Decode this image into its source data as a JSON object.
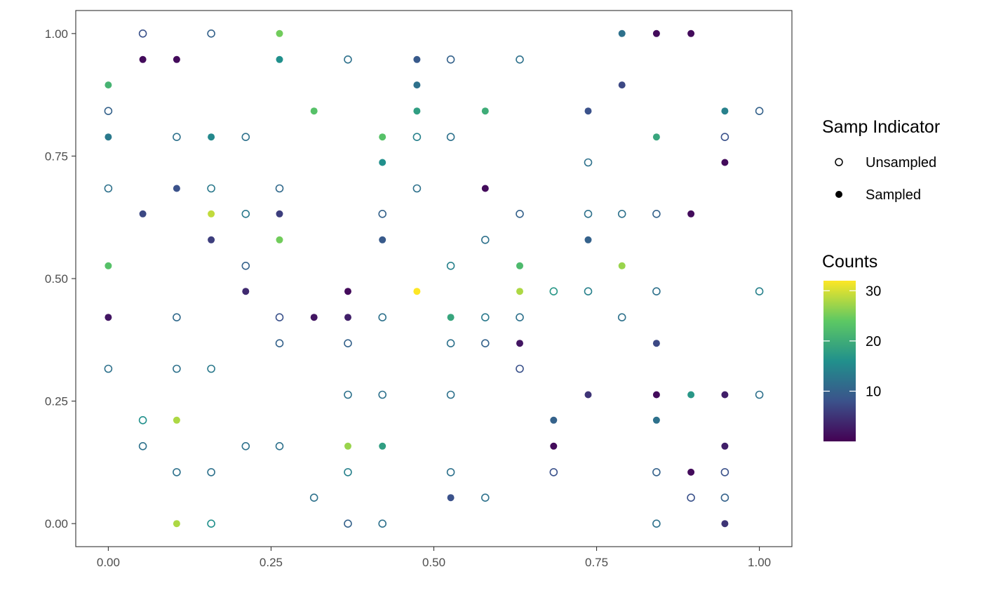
{
  "chart_data": {
    "type": "scatter",
    "title": "",
    "xlabel": "",
    "ylabel": "",
    "xlim": [
      -0.05,
      1.05
    ],
    "ylim": [
      -0.047,
      1.047
    ],
    "x_ticks": [
      "0.00",
      "0.25",
      "0.50",
      "0.75",
      "1.00"
    ],
    "y_ticks": [
      "0.00",
      "0.25",
      "0.50",
      "0.75",
      "1.00"
    ],
    "grid": false,
    "legend_position": "right",
    "legends": {
      "samp_indicator": {
        "title": "Samp Indicator",
        "entries": [
          "Unsampled",
          "Sampled"
        ]
      },
      "counts": {
        "title": "Counts",
        "ticks": [
          "10",
          "20",
          "30"
        ],
        "range": [
          0,
          32
        ],
        "palette": [
          "#440154",
          "#3B528B",
          "#21908C",
          "#5DC863",
          "#FDE725"
        ]
      }
    },
    "points": [
      {
        "x": 0.053,
        "y": 1.0,
        "sampled": false,
        "count": 8
      },
      {
        "x": 0.158,
        "y": 1.0,
        "sampled": false,
        "count": 10
      },
      {
        "x": 0.263,
        "y": 1.0,
        "sampled": true,
        "count": 25
      },
      {
        "x": 0.789,
        "y": 1.0,
        "sampled": true,
        "count": 12
      },
      {
        "x": 0.842,
        "y": 1.0,
        "sampled": true,
        "count": 1
      },
      {
        "x": 0.895,
        "y": 1.0,
        "sampled": true,
        "count": 1
      },
      {
        "x": 0.053,
        "y": 0.947,
        "sampled": true,
        "count": 1
      },
      {
        "x": 0.105,
        "y": 0.947,
        "sampled": true,
        "count": 1
      },
      {
        "x": 0.263,
        "y": 0.947,
        "sampled": true,
        "count": 16
      },
      {
        "x": 0.368,
        "y": 0.947,
        "sampled": false,
        "count": 12
      },
      {
        "x": 0.474,
        "y": 0.947,
        "sampled": true,
        "count": 9
      },
      {
        "x": 0.526,
        "y": 0.947,
        "sampled": false,
        "count": 10
      },
      {
        "x": 0.632,
        "y": 0.947,
        "sampled": false,
        "count": 12
      },
      {
        "x": 0.0,
        "y": 0.895,
        "sampled": true,
        "count": 21
      },
      {
        "x": 0.474,
        "y": 0.895,
        "sampled": true,
        "count": 12
      },
      {
        "x": 0.789,
        "y": 0.895,
        "sampled": true,
        "count": 7
      },
      {
        "x": 0.0,
        "y": 0.842,
        "sampled": false,
        "count": 10
      },
      {
        "x": 0.316,
        "y": 0.842,
        "sampled": true,
        "count": 23
      },
      {
        "x": 0.474,
        "y": 0.842,
        "sampled": true,
        "count": 18
      },
      {
        "x": 0.579,
        "y": 0.842,
        "sampled": true,
        "count": 20
      },
      {
        "x": 0.737,
        "y": 0.842,
        "sampled": true,
        "count": 8
      },
      {
        "x": 0.947,
        "y": 0.842,
        "sampled": true,
        "count": 14
      },
      {
        "x": 1.0,
        "y": 0.842,
        "sampled": false,
        "count": 10
      },
      {
        "x": 0.0,
        "y": 0.789,
        "sampled": true,
        "count": 13
      },
      {
        "x": 0.105,
        "y": 0.789,
        "sampled": false,
        "count": 12
      },
      {
        "x": 0.158,
        "y": 0.789,
        "sampled": true,
        "count": 15
      },
      {
        "x": 0.211,
        "y": 0.789,
        "sampled": false,
        "count": 12
      },
      {
        "x": 0.421,
        "y": 0.789,
        "sampled": true,
        "count": 23
      },
      {
        "x": 0.474,
        "y": 0.789,
        "sampled": false,
        "count": 14
      },
      {
        "x": 0.526,
        "y": 0.789,
        "sampled": false,
        "count": 12
      },
      {
        "x": 0.842,
        "y": 0.789,
        "sampled": true,
        "count": 19
      },
      {
        "x": 0.947,
        "y": 0.789,
        "sampled": false,
        "count": 8
      },
      {
        "x": 0.421,
        "y": 0.737,
        "sampled": true,
        "count": 16
      },
      {
        "x": 0.737,
        "y": 0.737,
        "sampled": false,
        "count": 12
      },
      {
        "x": 0.947,
        "y": 0.737,
        "sampled": true,
        "count": 1
      },
      {
        "x": 0.0,
        "y": 0.684,
        "sampled": false,
        "count": 12
      },
      {
        "x": 0.105,
        "y": 0.684,
        "sampled": true,
        "count": 8
      },
      {
        "x": 0.158,
        "y": 0.684,
        "sampled": false,
        "count": 13
      },
      {
        "x": 0.263,
        "y": 0.684,
        "sampled": false,
        "count": 11
      },
      {
        "x": 0.474,
        "y": 0.684,
        "sampled": false,
        "count": 12
      },
      {
        "x": 0.579,
        "y": 0.684,
        "sampled": true,
        "count": 1
      },
      {
        "x": 0.053,
        "y": 0.632,
        "sampled": true,
        "count": 7
      },
      {
        "x": 0.158,
        "y": 0.632,
        "sampled": true,
        "count": 29
      },
      {
        "x": 0.211,
        "y": 0.632,
        "sampled": false,
        "count": 13
      },
      {
        "x": 0.263,
        "y": 0.632,
        "sampled": true,
        "count": 6
      },
      {
        "x": 0.421,
        "y": 0.632,
        "sampled": false,
        "count": 10
      },
      {
        "x": 0.632,
        "y": 0.632,
        "sampled": false,
        "count": 10
      },
      {
        "x": 0.737,
        "y": 0.632,
        "sampled": false,
        "count": 12
      },
      {
        "x": 0.789,
        "y": 0.632,
        "sampled": false,
        "count": 12
      },
      {
        "x": 0.842,
        "y": 0.632,
        "sampled": false,
        "count": 10
      },
      {
        "x": 0.895,
        "y": 0.632,
        "sampled": true,
        "count": 1
      },
      {
        "x": 0.158,
        "y": 0.579,
        "sampled": true,
        "count": 6
      },
      {
        "x": 0.263,
        "y": 0.579,
        "sampled": true,
        "count": 25
      },
      {
        "x": 0.421,
        "y": 0.579,
        "sampled": true,
        "count": 9
      },
      {
        "x": 0.579,
        "y": 0.579,
        "sampled": false,
        "count": 12
      },
      {
        "x": 0.737,
        "y": 0.579,
        "sampled": true,
        "count": 10
      },
      {
        "x": 0.0,
        "y": 0.526,
        "sampled": true,
        "count": 23
      },
      {
        "x": 0.211,
        "y": 0.526,
        "sampled": false,
        "count": 10
      },
      {
        "x": 0.526,
        "y": 0.526,
        "sampled": false,
        "count": 14
      },
      {
        "x": 0.632,
        "y": 0.526,
        "sampled": true,
        "count": 22
      },
      {
        "x": 0.789,
        "y": 0.526,
        "sampled": true,
        "count": 27
      },
      {
        "x": 0.211,
        "y": 0.474,
        "sampled": true,
        "count": 4
      },
      {
        "x": 0.368,
        "y": 0.474,
        "sampled": true,
        "count": 1
      },
      {
        "x": 0.474,
        "y": 0.474,
        "sampled": true,
        "count": 32
      },
      {
        "x": 0.632,
        "y": 0.474,
        "sampled": true,
        "count": 28
      },
      {
        "x": 0.684,
        "y": 0.474,
        "sampled": false,
        "count": 17
      },
      {
        "x": 0.737,
        "y": 0.474,
        "sampled": false,
        "count": 14
      },
      {
        "x": 0.842,
        "y": 0.474,
        "sampled": false,
        "count": 12
      },
      {
        "x": 1.0,
        "y": 0.474,
        "sampled": false,
        "count": 14
      },
      {
        "x": 0.0,
        "y": 0.421,
        "sampled": true,
        "count": 2
      },
      {
        "x": 0.105,
        "y": 0.421,
        "sampled": false,
        "count": 11
      },
      {
        "x": 0.263,
        "y": 0.421,
        "sampled": false,
        "count": 8
      },
      {
        "x": 0.316,
        "y": 0.421,
        "sampled": true,
        "count": 2
      },
      {
        "x": 0.368,
        "y": 0.421,
        "sampled": true,
        "count": 3
      },
      {
        "x": 0.421,
        "y": 0.421,
        "sampled": false,
        "count": 12
      },
      {
        "x": 0.526,
        "y": 0.421,
        "sampled": true,
        "count": 19
      },
      {
        "x": 0.579,
        "y": 0.421,
        "sampled": false,
        "count": 13
      },
      {
        "x": 0.632,
        "y": 0.421,
        "sampled": false,
        "count": 12
      },
      {
        "x": 0.789,
        "y": 0.421,
        "sampled": false,
        "count": 12
      },
      {
        "x": 0.263,
        "y": 0.368,
        "sampled": false,
        "count": 10
      },
      {
        "x": 0.368,
        "y": 0.368,
        "sampled": false,
        "count": 10
      },
      {
        "x": 0.526,
        "y": 0.368,
        "sampled": false,
        "count": 12
      },
      {
        "x": 0.579,
        "y": 0.368,
        "sampled": false,
        "count": 10
      },
      {
        "x": 0.632,
        "y": 0.368,
        "sampled": true,
        "count": 2
      },
      {
        "x": 0.842,
        "y": 0.368,
        "sampled": true,
        "count": 7
      },
      {
        "x": 0.0,
        "y": 0.316,
        "sampled": false,
        "count": 12
      },
      {
        "x": 0.105,
        "y": 0.316,
        "sampled": false,
        "count": 12
      },
      {
        "x": 0.158,
        "y": 0.316,
        "sampled": false,
        "count": 13
      },
      {
        "x": 0.632,
        "y": 0.316,
        "sampled": false,
        "count": 8
      },
      {
        "x": 0.368,
        "y": 0.263,
        "sampled": false,
        "count": 12
      },
      {
        "x": 0.421,
        "y": 0.263,
        "sampled": false,
        "count": 12
      },
      {
        "x": 0.526,
        "y": 0.263,
        "sampled": false,
        "count": 12
      },
      {
        "x": 0.737,
        "y": 0.263,
        "sampled": true,
        "count": 5
      },
      {
        "x": 0.842,
        "y": 0.263,
        "sampled": true,
        "count": 1
      },
      {
        "x": 0.895,
        "y": 0.263,
        "sampled": true,
        "count": 17
      },
      {
        "x": 0.947,
        "y": 0.263,
        "sampled": true,
        "count": 3
      },
      {
        "x": 1.0,
        "y": 0.263,
        "sampled": false,
        "count": 12
      },
      {
        "x": 0.053,
        "y": 0.211,
        "sampled": false,
        "count": 16
      },
      {
        "x": 0.105,
        "y": 0.211,
        "sampled": true,
        "count": 28
      },
      {
        "x": 0.684,
        "y": 0.211,
        "sampled": true,
        "count": 10
      },
      {
        "x": 0.842,
        "y": 0.211,
        "sampled": true,
        "count": 12
      },
      {
        "x": 0.053,
        "y": 0.158,
        "sampled": false,
        "count": 12
      },
      {
        "x": 0.211,
        "y": 0.158,
        "sampled": false,
        "count": 12
      },
      {
        "x": 0.263,
        "y": 0.158,
        "sampled": false,
        "count": 12
      },
      {
        "x": 0.368,
        "y": 0.158,
        "sampled": true,
        "count": 27
      },
      {
        "x": 0.421,
        "y": 0.158,
        "sampled": true,
        "count": 18
      },
      {
        "x": 0.684,
        "y": 0.158,
        "sampled": true,
        "count": 1
      },
      {
        "x": 0.947,
        "y": 0.158,
        "sampled": true,
        "count": 3
      },
      {
        "x": 0.105,
        "y": 0.105,
        "sampled": false,
        "count": 12
      },
      {
        "x": 0.158,
        "y": 0.105,
        "sampled": false,
        "count": 12
      },
      {
        "x": 0.368,
        "y": 0.105,
        "sampled": false,
        "count": 14
      },
      {
        "x": 0.526,
        "y": 0.105,
        "sampled": false,
        "count": 12
      },
      {
        "x": 0.684,
        "y": 0.105,
        "sampled": false,
        "count": 8
      },
      {
        "x": 0.842,
        "y": 0.105,
        "sampled": false,
        "count": 10
      },
      {
        "x": 0.895,
        "y": 0.105,
        "sampled": true,
        "count": 1
      },
      {
        "x": 0.947,
        "y": 0.105,
        "sampled": false,
        "count": 8
      },
      {
        "x": 0.316,
        "y": 0.053,
        "sampled": false,
        "count": 12
      },
      {
        "x": 0.526,
        "y": 0.053,
        "sampled": true,
        "count": 8
      },
      {
        "x": 0.579,
        "y": 0.053,
        "sampled": false,
        "count": 12
      },
      {
        "x": 0.895,
        "y": 0.053,
        "sampled": false,
        "count": 8
      },
      {
        "x": 0.947,
        "y": 0.053,
        "sampled": false,
        "count": 10
      },
      {
        "x": 0.105,
        "y": 0.0,
        "sampled": true,
        "count": 28
      },
      {
        "x": 0.158,
        "y": 0.0,
        "sampled": false,
        "count": 16
      },
      {
        "x": 0.368,
        "y": 0.0,
        "sampled": false,
        "count": 10
      },
      {
        "x": 0.421,
        "y": 0.0,
        "sampled": false,
        "count": 12
      },
      {
        "x": 0.842,
        "y": 0.0,
        "sampled": false,
        "count": 12
      },
      {
        "x": 0.947,
        "y": 0.0,
        "sampled": true,
        "count": 5
      }
    ]
  }
}
